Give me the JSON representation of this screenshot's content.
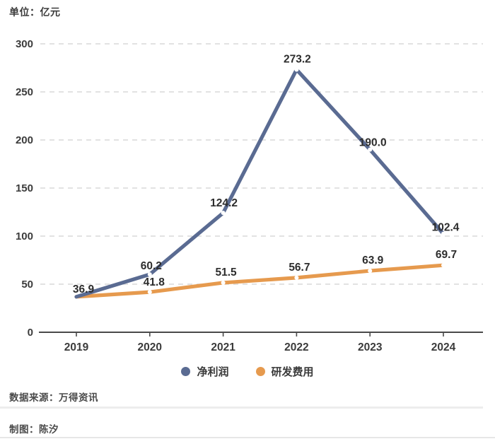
{
  "page": {
    "unit_label": "单位：亿元",
    "source_label": "数据来源：万得资讯",
    "credit_label": "制图：陈汐"
  },
  "chart_data": {
    "type": "line",
    "title": "",
    "categories": [
      "2019",
      "2020",
      "2021",
      "2022",
      "2023",
      "2024"
    ],
    "series": [
      {
        "name": "净利润",
        "color": "#5a6b92",
        "values": [
          36.9,
          60.2,
          124.2,
          273.2,
          190.0,
          102.4
        ],
        "point_labels": [
          "36.9",
          "60.2",
          "124.2",
          "273.2",
          "190.0",
          "102.4"
        ]
      },
      {
        "name": "研发费用",
        "color": "#e69a4e",
        "values": [
          36.9,
          41.8,
          51.5,
          56.7,
          63.9,
          69.7
        ],
        "point_labels": [
          "",
          "41.8",
          "51.5",
          "56.7",
          "63.9",
          "69.7"
        ]
      }
    ],
    "xlabel": "",
    "ylabel": "亿元",
    "ylim": [
      0,
      300
    ],
    "y_ticks": [
      0,
      50,
      100,
      150,
      200,
      250,
      300
    ],
    "grid": "horizontal-dashed",
    "legend_position": "bottom",
    "colors": {
      "grid_line": "#d9d9d9",
      "axis_line": "#4a4a4a",
      "tick_text": "#3b3b3b",
      "data_label_text": "#2d2d2d"
    }
  }
}
